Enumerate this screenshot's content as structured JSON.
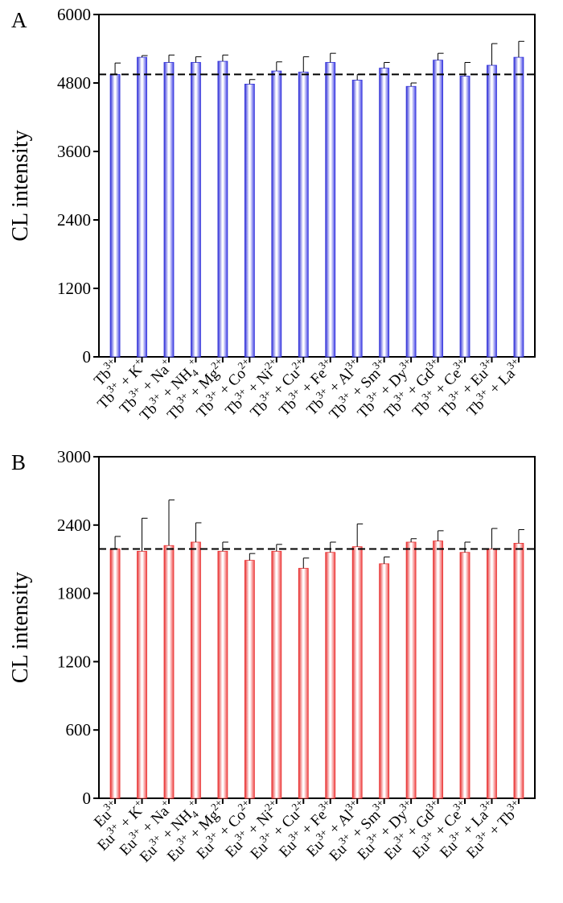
{
  "chart_data": [
    {
      "type": "bar",
      "panel_label": "A",
      "ylabel": "CL intensity",
      "ylim": [
        0,
        6000
      ],
      "yticks": [
        0,
        1200,
        2400,
        3600,
        4800,
        6000
      ],
      "yticks_text": [
        "0",
        "1200",
        "2400",
        "3600",
        "4800",
        "6000"
      ],
      "reference_line": 4950,
      "colors": {
        "bar_edge": "#3030d8",
        "bar_mid": "#ffffff",
        "bar_dark": "#4444e6"
      },
      "categories": [
        {
          "parts": [
            [
              "Tb",
              ""
            ],
            [
              "3+",
              "sup"
            ]
          ]
        },
        {
          "parts": [
            [
              "Tb",
              ""
            ],
            [
              "3+",
              "sup"
            ],
            [
              " + K",
              ""
            ],
            [
              "+",
              "sup"
            ]
          ]
        },
        {
          "parts": [
            [
              "Tb",
              ""
            ],
            [
              "3+",
              "sup"
            ],
            [
              " + Na",
              ""
            ],
            [
              "+",
              "sup"
            ]
          ]
        },
        {
          "parts": [
            [
              "Tb",
              ""
            ],
            [
              "3+",
              "sup"
            ],
            [
              " + NH",
              ""
            ],
            [
              "4",
              "sub"
            ],
            [
              "+",
              "sup"
            ]
          ]
        },
        {
          "parts": [
            [
              "Tb",
              ""
            ],
            [
              "3+",
              "sup"
            ],
            [
              " + Mg",
              ""
            ],
            [
              "2+",
              "sup"
            ]
          ]
        },
        {
          "parts": [
            [
              "Tb",
              ""
            ],
            [
              "3+",
              "sup"
            ],
            [
              " + Co",
              ""
            ],
            [
              "2+",
              "sup"
            ]
          ]
        },
        {
          "parts": [
            [
              "Tb",
              ""
            ],
            [
              "3+",
              "sup"
            ],
            [
              " + Ni",
              ""
            ],
            [
              "2+",
              "sup"
            ]
          ]
        },
        {
          "parts": [
            [
              "Tb",
              ""
            ],
            [
              "3+",
              "sup"
            ],
            [
              " + Cu",
              ""
            ],
            [
              "2+",
              "sup"
            ]
          ]
        },
        {
          "parts": [
            [
              "Tb",
              ""
            ],
            [
              "3+",
              "sup"
            ],
            [
              " + Fe",
              ""
            ],
            [
              "3+",
              "sup"
            ]
          ]
        },
        {
          "parts": [
            [
              "Tb",
              ""
            ],
            [
              "3+",
              "sup"
            ],
            [
              " + Al",
              ""
            ],
            [
              "3+",
              "sup"
            ]
          ]
        },
        {
          "parts": [
            [
              "Tb",
              ""
            ],
            [
              "3+",
              "sup"
            ],
            [
              " + Sm",
              ""
            ],
            [
              "3+",
              "sup"
            ]
          ]
        },
        {
          "parts": [
            [
              "Tb",
              ""
            ],
            [
              "3+",
              "sup"
            ],
            [
              " + Dy",
              ""
            ],
            [
              "3+",
              "sup"
            ]
          ]
        },
        {
          "parts": [
            [
              "Tb",
              ""
            ],
            [
              "3+",
              "sup"
            ],
            [
              " + Gd",
              ""
            ],
            [
              "3+",
              "sup"
            ]
          ]
        },
        {
          "parts": [
            [
              "Tb",
              ""
            ],
            [
              "3+",
              "sup"
            ],
            [
              " + Ce",
              ""
            ],
            [
              "3+",
              "sup"
            ]
          ]
        },
        {
          "parts": [
            [
              "Tb",
              ""
            ],
            [
              "3+",
              "sup"
            ],
            [
              " + Eu",
              ""
            ],
            [
              "3+",
              "sup"
            ]
          ]
        },
        {
          "parts": [
            [
              "Tb",
              ""
            ],
            [
              "3+",
              "sup"
            ],
            [
              " + La",
              ""
            ],
            [
              "3+",
              "sup"
            ]
          ]
        }
      ],
      "values": [
        4950,
        5250,
        5160,
        5160,
        5180,
        4780,
        5010,
        4990,
        5160,
        4850,
        5060,
        4740,
        5200,
        4920,
        5110,
        5250
      ],
      "errors": [
        200,
        30,
        130,
        100,
        110,
        80,
        160,
        270,
        160,
        100,
        100,
        60,
        120,
        240,
        380,
        280
      ]
    },
    {
      "type": "bar",
      "panel_label": "B",
      "ylabel": "CL intensity",
      "ylim": [
        0,
        3000
      ],
      "yticks": [
        0,
        600,
        1200,
        1800,
        2400,
        3000
      ],
      "yticks_text": [
        "0",
        "600",
        "1200",
        "1800",
        "2400",
        "3000"
      ],
      "reference_line": 2190,
      "colors": {
        "bar_edge": "#e83030",
        "bar_mid": "#ffffff",
        "bar_dark": "#f04848"
      },
      "categories": [
        {
          "parts": [
            [
              "Eu",
              ""
            ],
            [
              "3+",
              "sup"
            ]
          ]
        },
        {
          "parts": [
            [
              "Eu",
              ""
            ],
            [
              "3+",
              "sup"
            ],
            [
              " + K",
              ""
            ],
            [
              "+",
              "sup"
            ]
          ]
        },
        {
          "parts": [
            [
              "Eu",
              ""
            ],
            [
              "3+",
              "sup"
            ],
            [
              " + Na",
              ""
            ],
            [
              "+",
              "sup"
            ]
          ]
        },
        {
          "parts": [
            [
              "Eu",
              ""
            ],
            [
              "3+",
              "sup"
            ],
            [
              " + NH",
              ""
            ],
            [
              "4",
              "sub"
            ],
            [
              "+",
              "sup"
            ]
          ]
        },
        {
          "parts": [
            [
              "Eu",
              ""
            ],
            [
              "3+",
              "sup"
            ],
            [
              " + Mg",
              ""
            ],
            [
              "2+",
              "sup"
            ]
          ]
        },
        {
          "parts": [
            [
              "Eu",
              ""
            ],
            [
              "3+",
              "sup"
            ],
            [
              " + Co",
              ""
            ],
            [
              "2+",
              "sup"
            ]
          ]
        },
        {
          "parts": [
            [
              "Eu",
              ""
            ],
            [
              "3+",
              "sup"
            ],
            [
              " + Ni",
              ""
            ],
            [
              "2+",
              "sup"
            ]
          ]
        },
        {
          "parts": [
            [
              "Eu",
              ""
            ],
            [
              "3+",
              "sup"
            ],
            [
              " + Cu",
              ""
            ],
            [
              "2+",
              "sup"
            ]
          ]
        },
        {
          "parts": [
            [
              "Eu",
              ""
            ],
            [
              "3+",
              "sup"
            ],
            [
              " + Fe",
              ""
            ],
            [
              "3+",
              "sup"
            ]
          ]
        },
        {
          "parts": [
            [
              "Eu",
              ""
            ],
            [
              "3+",
              "sup"
            ],
            [
              " + Al",
              ""
            ],
            [
              "3+",
              "sup"
            ]
          ]
        },
        {
          "parts": [
            [
              "Eu",
              ""
            ],
            [
              "3+",
              "sup"
            ],
            [
              " + Sm",
              ""
            ],
            [
              "3+",
              "sup"
            ]
          ]
        },
        {
          "parts": [
            [
              "Eu",
              ""
            ],
            [
              "3+",
              "sup"
            ],
            [
              " + Dy",
              ""
            ],
            [
              "3+",
              "sup"
            ]
          ]
        },
        {
          "parts": [
            [
              "Eu",
              ""
            ],
            [
              "3+",
              "sup"
            ],
            [
              " + Gd",
              ""
            ],
            [
              "3+",
              "sup"
            ]
          ]
        },
        {
          "parts": [
            [
              "Eu",
              ""
            ],
            [
              "3+",
              "sup"
            ],
            [
              " + Ce",
              ""
            ],
            [
              "3+",
              "sup"
            ]
          ]
        },
        {
          "parts": [
            [
              "Eu",
              ""
            ],
            [
              "3+",
              "sup"
            ],
            [
              " + La",
              ""
            ],
            [
              "3+",
              "sup"
            ]
          ]
        },
        {
          "parts": [
            [
              "Eu",
              ""
            ],
            [
              "3+",
              "sup"
            ],
            [
              " + Tb",
              ""
            ],
            [
              "3+",
              "sup"
            ]
          ]
        }
      ],
      "values": [
        2190,
        2170,
        2220,
        2250,
        2170,
        2090,
        2170,
        2020,
        2160,
        2210,
        2060,
        2250,
        2260,
        2160,
        2190,
        2240
      ],
      "errors": [
        110,
        290,
        400,
        170,
        80,
        60,
        60,
        90,
        90,
        200,
        60,
        30,
        90,
        90,
        180,
        120
      ]
    }
  ]
}
